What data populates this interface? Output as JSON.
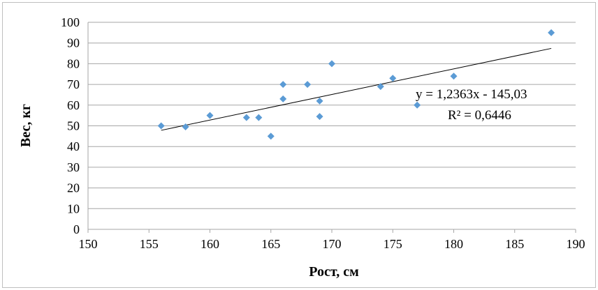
{
  "chart_data": {
    "type": "scatter",
    "xlabel": "Рост, см",
    "ylabel": "Вес, кг",
    "xlim": [
      150,
      190
    ],
    "ylim": [
      0,
      100
    ],
    "xticks": [
      150,
      155,
      160,
      165,
      170,
      175,
      180,
      185,
      190
    ],
    "yticks": [
      0,
      10,
      20,
      30,
      40,
      50,
      60,
      70,
      80,
      90,
      100
    ],
    "grid": "horizontal",
    "marker": "diamond",
    "colors": {
      "points": "#5b9bd5",
      "trendline": "#000000",
      "grid": "#a6a6a6"
    },
    "series": [
      {
        "x": [
          156,
          158,
          160,
          163,
          164,
          165,
          166,
          166,
          168,
          169,
          169,
          170,
          174,
          175,
          177,
          180,
          188
        ],
        "y": [
          50,
          49.5,
          55,
          54,
          54,
          45,
          63,
          70,
          70,
          62,
          54.5,
          80,
          69,
          73,
          60,
          74,
          95
        ]
      }
    ],
    "trendline": {
      "type": "linear",
      "slope": 1.2363,
      "intercept": -145.03,
      "x_range": [
        156,
        188
      ],
      "equation_label": "y = 1,2363x - 145,03",
      "r2_label": "R² = 0,6446"
    }
  }
}
